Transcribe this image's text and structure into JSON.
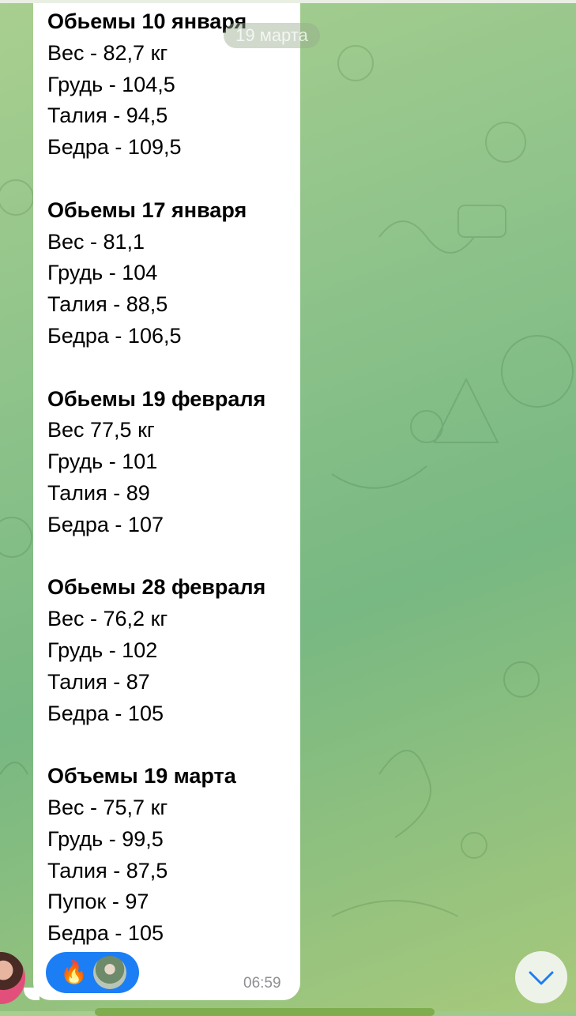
{
  "date_pill": "19 марта",
  "message": {
    "groups": [
      {
        "heading": "Обьемы 10 января",
        "lines": [
          "Вес - 82,7 кг",
          "Грудь - 104,5",
          "Талия - 94,5",
          "Бедра - 109,5"
        ]
      },
      {
        "heading": "Обьемы 17 января",
        "lines": [
          "Вес - 81,1",
          "Грудь - 104",
          "Талия - 88,5",
          "Бедра - 106,5"
        ]
      },
      {
        "heading": "Обьемы 19 февраля",
        "lines": [
          "Вес 77,5 кг",
          "Грудь - 101",
          "Талия - 89",
          "Бедра - 107"
        ]
      },
      {
        "heading": "Обьемы 28 февраля",
        "lines": [
          "Вес - 76,2 кг",
          "Грудь - 102",
          "Талия - 87",
          "Бедра - 105"
        ]
      },
      {
        "heading": "Объемы 19 марта",
        "lines": [
          "Вес - 75,7 кг",
          "Грудь - 99,5",
          "Талия - 87,5",
          "Пупок - 97",
          "Бедра - 105"
        ]
      }
    ],
    "reaction_emoji": "🔥",
    "time": "06:59"
  },
  "colors": {
    "reaction_bg": "#1c7ef5",
    "accent": "#1c7ef5"
  },
  "icons": {
    "scroll_down": "chevron-down-icon"
  }
}
